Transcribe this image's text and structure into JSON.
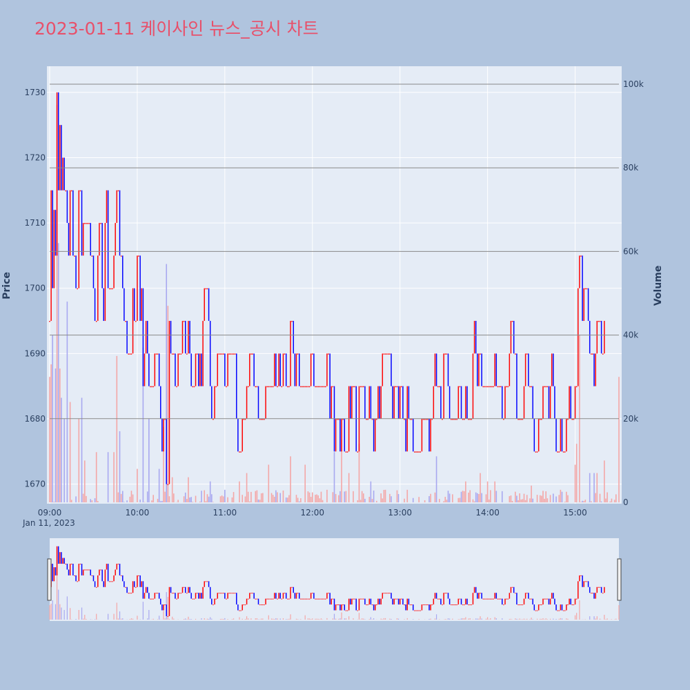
{
  "chart_data": {
    "type": "candlestick",
    "title": "2023-01-11 케이사인 뉴스_공시 차트",
    "ylabel": "Price",
    "y2label": "Volume",
    "date_label": "Jan 11, 2023",
    "ylim": [
      1667,
      1734
    ],
    "y2lim": [
      0,
      100000
    ],
    "xlim": [
      "09:00",
      "15:30"
    ],
    "yticks": [
      1670,
      1680,
      1690,
      1700,
      1710,
      1720,
      1730
    ],
    "y2ticks": [
      {
        "v": 0,
        "label": "0"
      },
      {
        "v": 20000,
        "label": "20k"
      },
      {
        "v": 40000,
        "label": "40k"
      },
      {
        "v": 60000,
        "label": "60k"
      },
      {
        "v": 80000,
        "label": "80k"
      },
      {
        "v": 100000,
        "label": "100k"
      }
    ],
    "xticks": [
      "09:00",
      "10:00",
      "11:00",
      "12:00",
      "13:00",
      "14:00",
      "15:00"
    ],
    "colors": {
      "up": "#ff0000",
      "down": "#0000ff",
      "up_volume": "#f4a6a6",
      "down_volume": "#a8a8f0"
    },
    "price_path": [
      [
        "09:00",
        1695
      ],
      [
        "09:01",
        1715
      ],
      [
        "09:02",
        1700
      ],
      [
        "09:03",
        1712
      ],
      [
        "09:04",
        1705
      ],
      [
        "09:05",
        1730
      ],
      [
        "09:06",
        1715
      ],
      [
        "09:07",
        1725
      ],
      [
        "09:08",
        1715
      ],
      [
        "09:09",
        1720
      ],
      [
        "09:10",
        1715
      ],
      [
        "09:12",
        1710
      ],
      [
        "09:14",
        1715
      ],
      [
        "09:16",
        1705
      ],
      [
        "09:18",
        1700
      ],
      [
        "09:20",
        1715
      ],
      [
        "09:22",
        1705
      ],
      [
        "09:25",
        1710
      ],
      [
        "09:28",
        1705
      ],
      [
        "09:30",
        1700
      ],
      [
        "09:33",
        1705
      ],
      [
        "09:36",
        1700
      ],
      [
        "09:38",
        1710
      ],
      [
        "09:40",
        1700
      ],
      [
        "09:44",
        1705
      ],
      [
        "09:46",
        1715
      ],
      [
        "09:48",
        1705
      ],
      [
        "09:50",
        1700
      ],
      [
        "09:52",
        1695
      ],
      [
        "09:57",
        1700
      ],
      [
        "10:00",
        1705
      ],
      [
        "10:02",
        1695
      ],
      [
        "10:04",
        1685
      ],
      [
        "10:06",
        1695
      ],
      [
        "10:10",
        1685
      ],
      [
        "10:12",
        1690
      ],
      [
        "10:15",
        1685
      ],
      [
        "10:18",
        1680
      ],
      [
        "10:20",
        1670
      ],
      [
        "10:22",
        1695
      ],
      [
        "10:26",
        1685
      ],
      [
        "10:30",
        1690
      ],
      [
        "10:35",
        1695
      ],
      [
        "10:40",
        1690
      ],
      [
        "10:45",
        1695
      ],
      [
        "10:50",
        1685
      ],
      [
        "10:55",
        1690
      ],
      [
        "11:00",
        1685
      ],
      [
        "11:05",
        1690
      ],
      [
        "11:08",
        1680
      ],
      [
        "11:15",
        1685
      ],
      [
        "11:25",
        1680
      ],
      [
        "11:35",
        1685
      ],
      [
        "11:40",
        1690
      ],
      [
        "11:45",
        1695
      ],
      [
        "11:50",
        1690
      ],
      [
        "12:00",
        1690
      ],
      [
        "12:05",
        1685
      ],
      [
        "12:10",
        1690
      ],
      [
        "12:12",
        1680
      ],
      [
        "12:15",
        1675
      ],
      [
        "12:20",
        1680
      ],
      [
        "12:25",
        1685
      ],
      [
        "12:30",
        1675
      ],
      [
        "12:32",
        1685
      ],
      [
        "12:40",
        1680
      ],
      [
        "12:45",
        1685
      ],
      [
        "12:55",
        1680
      ],
      [
        "13:05",
        1685
      ],
      [
        "13:15",
        1680
      ],
      [
        "13:25",
        1685
      ],
      [
        "13:30",
        1690
      ],
      [
        "13:40",
        1685
      ],
      [
        "13:50",
        1690
      ],
      [
        "14:00",
        1685
      ],
      [
        "14:05",
        1690
      ],
      [
        "14:10",
        1680
      ],
      [
        "14:15",
        1690
      ],
      [
        "14:20",
        1680
      ],
      [
        "14:25",
        1685
      ],
      [
        "14:35",
        1680
      ],
      [
        "14:45",
        1685
      ],
      [
        "14:55",
        1680
      ],
      [
        "15:00",
        1685
      ],
      [
        "15:02",
        1700
      ],
      [
        "15:03",
        1705
      ],
      [
        "15:05",
        1695
      ],
      [
        "15:08",
        1700
      ],
      [
        "15:10",
        1690
      ],
      [
        "15:15",
        1695
      ],
      [
        "15:18",
        1690
      ],
      [
        "15:20",
        1695
      ]
    ],
    "volume_spikes": [
      [
        "09:00",
        30000
      ],
      [
        "09:01",
        33000
      ],
      [
        "09:02",
        40000
      ],
      [
        "09:04",
        32000
      ],
      [
        "09:05",
        95000
      ],
      [
        "09:06",
        62000
      ],
      [
        "09:07",
        32000
      ],
      [
        "09:08",
        25000
      ],
      [
        "09:10",
        20000
      ],
      [
        "09:12",
        48000
      ],
      [
        "09:14",
        24000
      ],
      [
        "09:20",
        20000
      ],
      [
        "09:22",
        25000
      ],
      [
        "09:24",
        10000
      ],
      [
        "09:32",
        12000
      ],
      [
        "09:40",
        12000
      ],
      [
        "09:44",
        12000
      ],
      [
        "09:46",
        35000
      ],
      [
        "09:48",
        17000
      ],
      [
        "10:00",
        8000
      ],
      [
        "10:04",
        37000
      ],
      [
        "10:08",
        20000
      ],
      [
        "10:15",
        8000
      ],
      [
        "10:18",
        18000
      ],
      [
        "10:20",
        57000
      ],
      [
        "10:21",
        47000
      ],
      [
        "10:24",
        6000
      ],
      [
        "10:35",
        6000
      ],
      [
        "10:50",
        5000
      ],
      [
        "11:00",
        3000
      ],
      [
        "11:10",
        5000
      ],
      [
        "11:15",
        7000
      ],
      [
        "11:30",
        9000
      ],
      [
        "11:45",
        11000
      ],
      [
        "11:55",
        9000
      ],
      [
        "12:10",
        3000
      ],
      [
        "12:15",
        12000
      ],
      [
        "12:20",
        15000
      ],
      [
        "12:25",
        7000
      ],
      [
        "12:32",
        14000
      ],
      [
        "12:40",
        5000
      ],
      [
        "12:50",
        3000
      ],
      [
        "13:05",
        3000
      ],
      [
        "13:25",
        11000
      ],
      [
        "13:45",
        5000
      ],
      [
        "13:55",
        7000
      ],
      [
        "14:00",
        5000
      ],
      [
        "14:05",
        5000
      ],
      [
        "14:30",
        4000
      ],
      [
        "14:50",
        3000
      ],
      [
        "15:00",
        9000
      ],
      [
        "15:01",
        14000
      ],
      [
        "15:03",
        40000
      ],
      [
        "15:10",
        7000
      ],
      [
        "15:13",
        7000
      ],
      [
        "15:15",
        7000
      ],
      [
        "15:20",
        10000
      ],
      [
        "15:30",
        30000
      ]
    ]
  }
}
